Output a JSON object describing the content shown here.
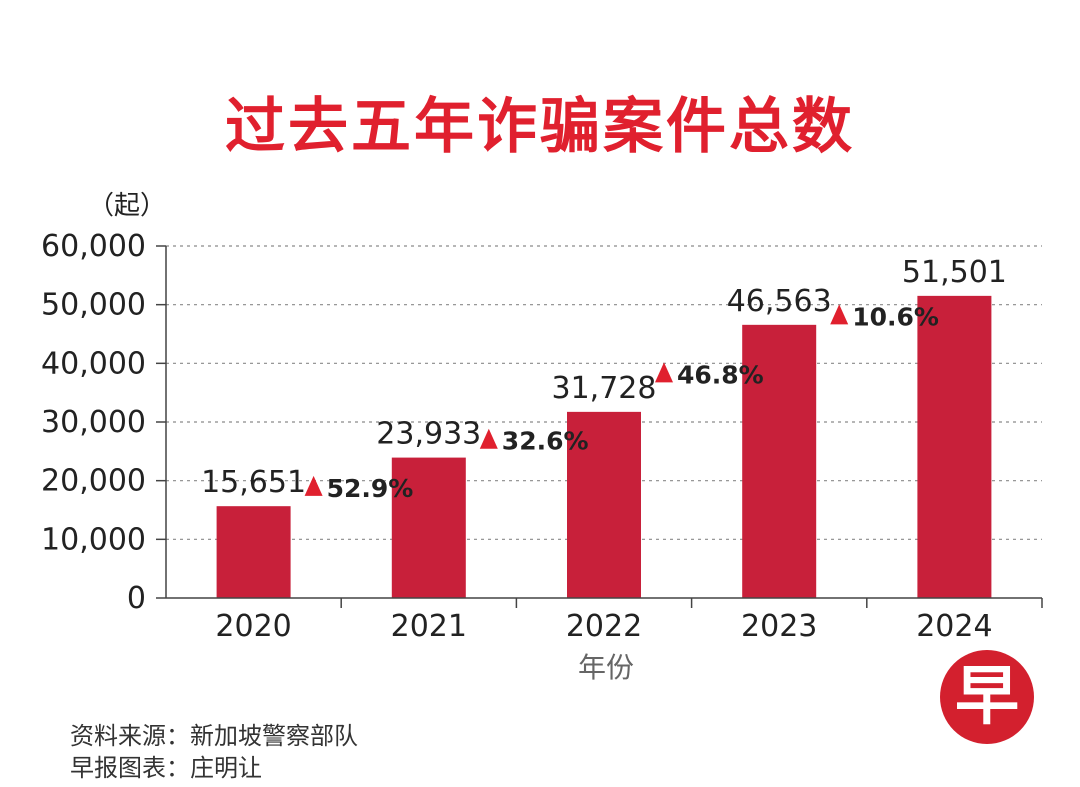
{
  "title": "过去五年诈骗案件总数",
  "source": "资料来源：新加坡警察部队",
  "credit": "早报图表：庄明让",
  "logo_text": "早",
  "colors": {
    "bar": "#c8203a",
    "title": "#e0202e",
    "arrow": "#e0202e",
    "logo": "#d3202e"
  },
  "chart_data": {
    "type": "bar",
    "title": "过去五年诈骗案件总数",
    "xlabel": "年份",
    "ylabel": "（起）",
    "categories": [
      "2020",
      "2021",
      "2022",
      "2023",
      "2024"
    ],
    "values": [
      15651,
      23933,
      31728,
      46563,
      51501
    ],
    "value_labels": [
      "15,651",
      "23,933",
      "31,728",
      "46,563",
      "51,501"
    ],
    "ylim": [
      0,
      60000
    ],
    "yticks": [
      0,
      10000,
      20000,
      30000,
      40000,
      50000,
      60000
    ],
    "ytick_labels": [
      "0",
      "10,000",
      "20,000",
      "30,000",
      "40,000",
      "50,000",
      "60,000"
    ],
    "grid": true,
    "growth_labels": [
      "52.9%",
      "32.6%",
      "46.8%",
      "10.6%"
    ]
  }
}
